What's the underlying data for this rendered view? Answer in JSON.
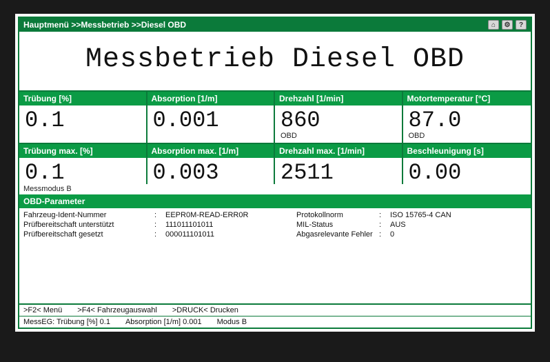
{
  "breadcrumb": "Hauptmenü >>Messbetrieb >>Diesel OBD",
  "title": "Messbetrieb Diesel OBD",
  "colors": {
    "green_dark": "#0b7a3a",
    "green_head": "#0b9b45",
    "text": "#111111",
    "bg": "#ffffff"
  },
  "grid_row1": [
    {
      "label": "Trübung [%]",
      "value": "0.1",
      "sub": ""
    },
    {
      "label": "Absorption [1/m]",
      "value": "0.001",
      "sub": ""
    },
    {
      "label": "Drehzahl [1/min]",
      "value": "860",
      "sub": "OBD"
    },
    {
      "label": "Motortemperatur [°C]",
      "value": "87.0",
      "sub": "OBD"
    }
  ],
  "grid_row2": [
    {
      "label": "Trübung max. [%]",
      "value": "0.1"
    },
    {
      "label": "Absorption max. [1/m]",
      "value": "0.003"
    },
    {
      "label": "Drehzahl max. [1/min]",
      "value": "2511"
    },
    {
      "label": "Beschleunigung [s]",
      "value": "0.00"
    }
  ],
  "row2_sub": "Messmodus B",
  "obd": {
    "header": "OBD-Parameter",
    "left": [
      {
        "k": "Fahrzeug-Ident-Nummer",
        "v": "EEPR0M-READ-ERR0R"
      },
      {
        "k": "Prüfbereitschaft unterstützt",
        "v": "111011101011"
      },
      {
        "k": "Prüfbereitschaft gesetzt",
        "v": "000011101011"
      }
    ],
    "right": [
      {
        "k": "Protokollnorm",
        "v": "ISO 15765-4 CAN"
      },
      {
        "k": "MIL-Status",
        "v": "AUS"
      },
      {
        "k": "Abgasrelevante Fehler",
        "v": "0"
      }
    ]
  },
  "fnbar": {
    "f2": ">F2< Menü",
    "f4": ">F4< Fahrzeugauswahl",
    "print": ">DRUCK< Drucken"
  },
  "statusbar": {
    "a": "MessEG: Trübung [%] 0.1",
    "b": "Absorption [1/m] 0.001",
    "c": "Modus B"
  }
}
